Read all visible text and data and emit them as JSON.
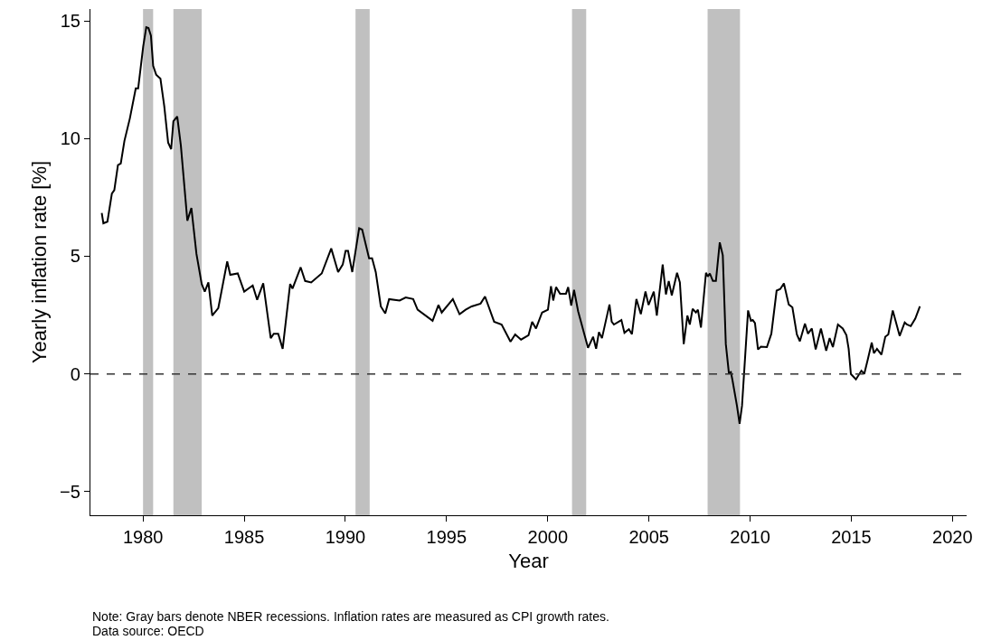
{
  "chart_data": {
    "type": "line",
    "xlabel": "Year",
    "ylabel": "Yearly inflation rate [%]",
    "annotations": [
      "Note: Gray bars denote NBER recessions. Inflation rates are measured as CPI growth rates.",
      "Data source: OECD"
    ],
    "x": [
      1977.96,
      1978.04,
      1978.24,
      1978.46,
      1978.58,
      1978.76,
      1978.9,
      1979.08,
      1979.35,
      1979.64,
      1979.76,
      1980.01,
      1980.16,
      1980.27,
      1980.39,
      1980.5,
      1980.65,
      1980.86,
      1981.05,
      1981.24,
      1981.39,
      1981.5,
      1981.69,
      1981.87,
      1982.19,
      1982.39,
      1982.64,
      1982.9,
      1983.05,
      1983.23,
      1983.42,
      1983.72,
      1984.16,
      1984.31,
      1984.68,
      1985.0,
      1985.42,
      1985.64,
      1985.94,
      1986.31,
      1986.46,
      1986.68,
      1986.9,
      1987.27,
      1987.39,
      1987.79,
      1988.01,
      1988.31,
      1988.83,
      1989.3,
      1989.64,
      1989.87,
      1990.01,
      1990.13,
      1990.34,
      1990.68,
      1990.83,
      1991.17,
      1991.32,
      1991.5,
      1991.75,
      1991.97,
      1992.16,
      1992.68,
      1992.98,
      1993.35,
      1993.57,
      1994.31,
      1994.6,
      1994.76,
      1995.31,
      1995.64,
      1995.94,
      1996.24,
      1996.68,
      1996.9,
      1997.35,
      1997.72,
      1998.16,
      1998.39,
      1998.68,
      1999.05,
      1999.23,
      1999.42,
      1999.72,
      2000.01,
      2000.16,
      2000.27,
      2000.41,
      2000.61,
      2000.9,
      2001.01,
      2001.16,
      2001.3,
      2001.5,
      2001.99,
      2002.24,
      2002.39,
      2002.53,
      2002.68,
      2003.05,
      2003.16,
      2003.27,
      2003.64,
      2003.79,
      2004.01,
      2004.16,
      2004.38,
      2004.6,
      2004.83,
      2004.98,
      2005.24,
      2005.39,
      2005.68,
      2005.84,
      2005.98,
      2006.13,
      2006.39,
      2006.53,
      2006.72,
      2006.9,
      2007.02,
      2007.16,
      2007.32,
      2007.42,
      2007.57,
      2007.82,
      2007.91,
      2008.01,
      2008.16,
      2008.31,
      2008.5,
      2008.65,
      2008.8,
      2008.95,
      2009.05,
      2009.13,
      2009.35,
      2009.48,
      2009.6,
      2009.9,
      2010.04,
      2010.13,
      2010.24,
      2010.39,
      2010.53,
      2010.83,
      2011.05,
      2011.31,
      2011.49,
      2011.67,
      2011.91,
      2012.09,
      2012.31,
      2012.46,
      2012.71,
      2012.86,
      2013.05,
      2013.24,
      2013.5,
      2013.76,
      2013.93,
      2014.09,
      2014.34,
      2014.58,
      2014.76,
      2014.87,
      2014.98,
      2015.23,
      2015.5,
      2015.64,
      2015.82,
      2016.01,
      2016.12,
      2016.27,
      2016.49,
      2016.68,
      2016.83,
      2017.05,
      2017.39,
      2017.64,
      2017.75,
      2017.94,
      2018.16,
      2018.39
    ],
    "series": [
      {
        "color": "#000000",
        "values": [
          6.84,
          6.4,
          6.47,
          7.66,
          7.81,
          8.87,
          8.94,
          9.9,
          10.86,
          12.13,
          12.13,
          13.92,
          14.73,
          14.69,
          14.37,
          13.09,
          12.71,
          12.54,
          11.37,
          9.83,
          9.55,
          10.73,
          10.94,
          9.7,
          6.51,
          7.05,
          5.1,
          3.82,
          3.5,
          3.89,
          2.48,
          2.8,
          4.78,
          4.21,
          4.27,
          3.5,
          3.76,
          3.15,
          3.85,
          1.52,
          1.71,
          1.71,
          1.07,
          3.82,
          3.63,
          4.53,
          3.95,
          3.89,
          4.27,
          5.33,
          4.33,
          4.65,
          5.23,
          5.23,
          4.33,
          6.19,
          6.13,
          4.91,
          4.91,
          4.33,
          2.87,
          2.57,
          3.18,
          3.12,
          3.25,
          3.18,
          2.73,
          2.26,
          2.93,
          2.61,
          3.18,
          2.54,
          2.73,
          2.87,
          2.99,
          3.29,
          2.22,
          2.1,
          1.37,
          1.68,
          1.46,
          1.65,
          2.22,
          1.93,
          2.61,
          2.73,
          3.73,
          3.12,
          3.69,
          3.41,
          3.41,
          3.69,
          2.9,
          3.57,
          2.67,
          1.11,
          1.58,
          1.07,
          1.78,
          1.52,
          2.95,
          2.22,
          2.1,
          2.29,
          1.75,
          1.9,
          1.69,
          3.18,
          2.54,
          3.5,
          2.93,
          3.5,
          2.48,
          4.65,
          3.38,
          3.95,
          3.34,
          4.3,
          3.89,
          1.27,
          2.48,
          2.1,
          2.77,
          2.61,
          2.73,
          1.97,
          4.3,
          4.14,
          4.27,
          3.95,
          3.95,
          5.59,
          5.04,
          1.27,
          0.05,
          0.08,
          -0.27,
          -1.35,
          -2.12,
          -1.35,
          2.7,
          2.26,
          2.29,
          2.16,
          1.04,
          1.16,
          1.14,
          1.71,
          3.54,
          3.61,
          3.85,
          2.95,
          2.83,
          1.68,
          1.39,
          2.14,
          1.71,
          1.93,
          1.04,
          1.93,
          0.99,
          1.52,
          1.14,
          2.1,
          1.93,
          1.65,
          1.07,
          0.0,
          -0.23,
          0.14,
          0.0,
          0.63,
          1.33,
          0.88,
          1.07,
          0.82,
          1.58,
          1.68,
          2.7,
          1.62,
          2.19,
          2.1,
          2.03,
          2.35,
          2.87
        ]
      }
    ],
    "xlim": [
      1977.4,
      2020.7
    ],
    "xticks": [
      1980,
      1985,
      1990,
      1995,
      2000,
      2005,
      2010,
      2015,
      2020
    ],
    "ylim": [
      -6,
      15.5
    ],
    "yticks": [
      {
        "value": -5,
        "label": "−5"
      },
      0,
      5,
      10,
      15
    ],
    "ref_lines": [
      {
        "axis": "y",
        "value": 0,
        "color": "#333333",
        "line_style": "dashed"
      }
    ],
    "bands": [
      {
        "axis": "x",
        "from": 1980.0,
        "to": 1980.5,
        "color": "#c0c0c0"
      },
      {
        "axis": "x",
        "from": 1981.5,
        "to": 1982.9,
        "color": "#c0c0c0"
      },
      {
        "axis": "x",
        "from": 1990.5,
        "to": 1991.2,
        "color": "#c0c0c0"
      },
      {
        "axis": "x",
        "from": 2001.2,
        "to": 2001.9,
        "color": "#c0c0c0"
      },
      {
        "axis": "x",
        "from": 2007.9,
        "to": 2009.5,
        "color": "#c0c0c0"
      }
    ],
    "marker": "none",
    "line_style": "solid"
  }
}
